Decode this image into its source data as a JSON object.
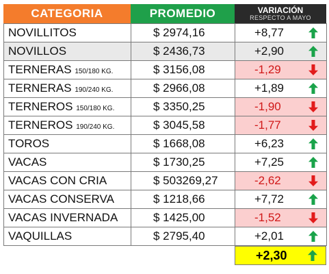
{
  "header": {
    "categoria": "CATEGORIA",
    "promedio": "PROMEDIO",
    "variacion": "VARIACIÓN",
    "variacion_sub": "RESPECTO A MAYO"
  },
  "colors": {
    "categoria_header": "#f47c2c",
    "promedio_header": "#1fa04a",
    "variacion_header": "#2a2a2a",
    "negative_bg": "#fbcfcf",
    "total_bg": "#ffff00",
    "up_arrow": "#1aa34a",
    "down_arrow": "#e21b1b"
  },
  "rows": [
    {
      "name": "NOVILLITOS",
      "sub": "",
      "promedio": "$ 2974,16",
      "variacion": "+8,77",
      "direction": "up",
      "highlight": false
    },
    {
      "name": "NOVILLOS",
      "sub": "",
      "promedio": "$ 2436,73",
      "variacion": "+2,90",
      "direction": "up",
      "highlight": true
    },
    {
      "name": "TERNERAS",
      "sub": "150/180 KG.",
      "promedio": "$ 3156,08",
      "variacion": "-1,29",
      "direction": "down",
      "highlight": false
    },
    {
      "name": "TERNERAS",
      "sub": "190/240 KG.",
      "promedio": "$ 2966,08",
      "variacion": "+1,89",
      "direction": "up",
      "highlight": false
    },
    {
      "name": "TERNEROS",
      "sub": "150/180 KG.",
      "promedio": "$ 3350,25",
      "variacion": "-1,90",
      "direction": "down",
      "highlight": false
    },
    {
      "name": "TERNEROS",
      "sub": "190/240 KG.",
      "promedio": "$ 3045,58",
      "variacion": "-1,77",
      "direction": "down",
      "highlight": false
    },
    {
      "name": "TOROS",
      "sub": "",
      "promedio": "$ 1668,08",
      "variacion": "+6,23",
      "direction": "up",
      "highlight": false
    },
    {
      "name": "VACAS",
      "sub": "",
      "promedio": "$ 1730,25",
      "variacion": "+7,25",
      "direction": "up",
      "highlight": false
    },
    {
      "name": "VACAS CON CRIA",
      "sub": "",
      "promedio": "$ 503269,27",
      "variacion": "-2,62",
      "direction": "down",
      "highlight": false
    },
    {
      "name": "VACAS CONSERVA",
      "sub": "",
      "promedio": "$ 1218,66",
      "variacion": "+7,72",
      "direction": "up",
      "highlight": false
    },
    {
      "name": "VACAS INVERNADA",
      "sub": "",
      "promedio": "$ 1425,00",
      "variacion": "-1,52",
      "direction": "down",
      "highlight": false
    },
    {
      "name": "VAQUILLAS",
      "sub": "",
      "promedio": "$ 2795,40",
      "variacion": "+2,01",
      "direction": "up",
      "highlight": false
    }
  ],
  "total": {
    "variacion": "+2,30",
    "direction": "up"
  }
}
